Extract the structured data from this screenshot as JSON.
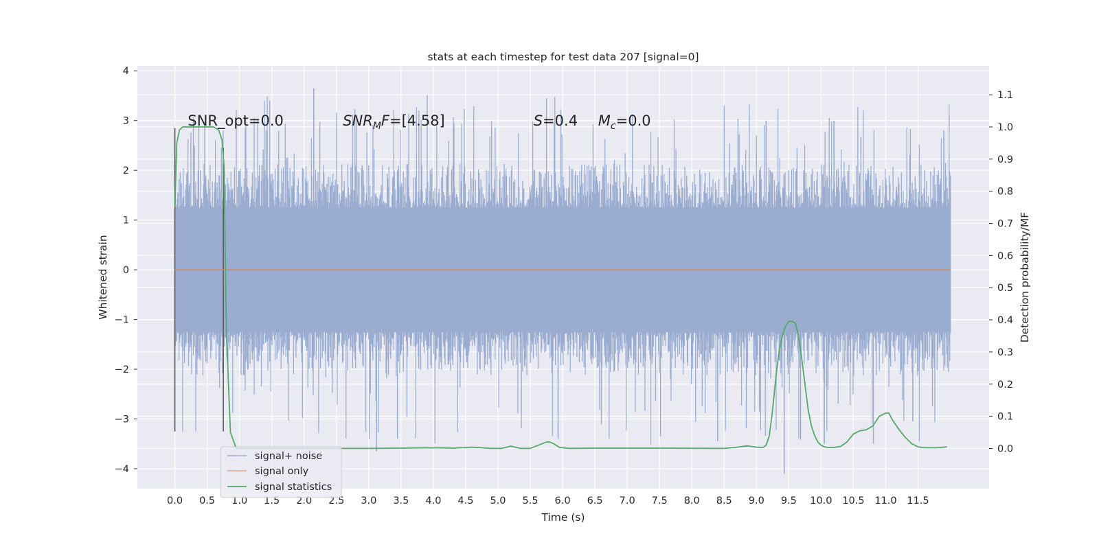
{
  "chart_data": {
    "type": "line",
    "title": "stats at each timestep for test data 207 [signal=0]",
    "xlabel": "Time (s)",
    "ylabel": "Whitened strain",
    "y2label": "Detection probability/MF",
    "xlim": [
      -0.58,
      12.6
    ],
    "ylim": [
      -4.4,
      4.1
    ],
    "y2lim": [
      -0.125,
      1.19
    ],
    "x_ticks": [
      0.0,
      0.5,
      1.0,
      1.5,
      2.0,
      2.5,
      3.0,
      3.5,
      4.0,
      4.5,
      5.0,
      5.5,
      6.0,
      6.5,
      7.0,
      7.5,
      8.0,
      8.5,
      9.0,
      9.5,
      10.0,
      10.5,
      11.0,
      11.5
    ],
    "x_tick_labels": [
      "0.0",
      "0.5",
      "1.0",
      "1.5",
      "2.0",
      "2.5",
      "3.0",
      "3.5",
      "4.0",
      "4.5",
      "5.0",
      "5.5",
      "6.0",
      "6.5",
      "7.0",
      "7.5",
      "8.0",
      "8.5",
      "9.0",
      "9.5",
      "10.0",
      "10.5",
      "11.0",
      "11.5"
    ],
    "y_ticks": [
      -4,
      -3,
      -2,
      -1,
      0,
      1,
      2,
      3,
      4
    ],
    "y_tick_labels": [
      "−4",
      "−3",
      "−2",
      "−1",
      "0",
      "1",
      "2",
      "3",
      "4"
    ],
    "y2_ticks": [
      0.0,
      0.1,
      0.2,
      0.3,
      0.4,
      0.5,
      0.6,
      0.7,
      0.8,
      0.9,
      1.0,
      1.1
    ],
    "y2_tick_labels": [
      "0.0",
      "0.1",
      "0.2",
      "0.3",
      "0.4",
      "0.5",
      "0.6",
      "0.7",
      "0.8",
      "0.9",
      "1.0",
      "1.1"
    ],
    "grid": true,
    "legend_position": "lower-left",
    "colors": {
      "background": "#eaeaf2",
      "grid": "#ffffff",
      "noise": "#9aadd1",
      "signal_only": "#dd8452",
      "statistics": "#55a868",
      "vline": "#555555"
    },
    "series": [
      {
        "name": "signal+ noise",
        "kind": "noise-band",
        "x_range": [
          0.0,
          12.0
        ],
        "envelope_typical": [
          -1.6,
          1.6
        ],
        "extremes": [
          {
            "x": 2.15,
            "y": 3.65
          },
          {
            "x": 3.12,
            "y": -3.65
          },
          {
            "x": 9.43,
            "y": -4.1
          },
          {
            "x": 10.05,
            "y": -3.5
          },
          {
            "x": 8.4,
            "y": -3.45
          },
          {
            "x": 5.93,
            "y": -3.4
          },
          {
            "x": 11.42,
            "y": -3.05
          },
          {
            "x": 9.15,
            "y": 3.0
          },
          {
            "x": 10.2,
            "y": 3.0
          },
          {
            "x": 11.9,
            "y": 2.8
          }
        ]
      },
      {
        "name": "signal only",
        "kind": "line",
        "x": [
          0.0,
          12.0
        ],
        "y": [
          0.0,
          0.0
        ]
      },
      {
        "name": "signal statistics",
        "kind": "line",
        "axis": "right",
        "x": [
          0.0,
          0.03,
          0.07,
          0.12,
          0.2,
          0.3,
          0.45,
          0.6,
          0.68,
          0.73,
          0.76,
          0.8,
          0.86,
          0.95,
          1.05,
          2.0,
          3.0,
          3.5,
          4.0,
          4.3,
          4.6,
          4.9,
          5.05,
          5.2,
          5.35,
          5.5,
          5.65,
          5.75,
          5.8,
          5.86,
          5.95,
          6.1,
          6.5,
          7.5,
          8.5,
          8.7,
          8.85,
          9.0,
          9.1,
          9.15,
          9.2,
          9.25,
          9.3,
          9.35,
          9.4,
          9.45,
          9.5,
          9.55,
          9.6,
          9.65,
          9.7,
          9.75,
          9.8,
          9.85,
          9.9,
          9.95,
          10.0,
          10.05,
          10.1,
          10.2,
          10.3,
          10.4,
          10.5,
          10.6,
          10.7,
          10.8,
          10.9,
          11.0,
          11.05,
          11.1,
          11.2,
          11.3,
          11.4,
          11.5,
          11.6,
          11.7,
          11.8,
          11.95
        ],
        "y": [
          0.75,
          0.95,
          0.99,
          1.0,
          1.0,
          1.0,
          1.0,
          1.0,
          0.99,
          0.96,
          0.88,
          0.35,
          0.05,
          0.0,
          0.0,
          0.0,
          0.0,
          0.001,
          0.002,
          0.001,
          0.004,
          0.0,
          0.0,
          0.007,
          0.0,
          0.0,
          0.012,
          0.02,
          0.02,
          0.015,
          0.003,
          0.0,
          0.001,
          0.001,
          0.0,
          0.004,
          0.008,
          0.004,
          0.003,
          0.01,
          0.04,
          0.12,
          0.22,
          0.3,
          0.35,
          0.38,
          0.395,
          0.395,
          0.39,
          0.35,
          0.28,
          0.2,
          0.12,
          0.07,
          0.04,
          0.02,
          0.01,
          0.005,
          0.003,
          0.003,
          0.006,
          0.02,
          0.045,
          0.055,
          0.058,
          0.07,
          0.1,
          0.11,
          0.11,
          0.09,
          0.06,
          0.035,
          0.015,
          0.005,
          0.002,
          0.002,
          0.002,
          0.005
        ]
      }
    ],
    "vertical_lines": [
      {
        "x": 0.0,
        "y_from": -3.25,
        "y_to": 2.85
      },
      {
        "x": 0.75,
        "y_from": -3.25,
        "y_to": 2.45
      }
    ],
    "annotations": [
      {
        "id": "snr_opt",
        "text": "SNR_opt=0.0",
        "x": 0.2,
        "y": 2.9
      },
      {
        "id": "snr_mf",
        "text_parts": [
          "SNR",
          "M",
          "F=[4.58]"
        ],
        "x": 2.6,
        "y": 2.9
      },
      {
        "id": "s_val",
        "text_parts": [
          "S",
          "=0.4"
        ],
        "x": 5.55,
        "y": 2.9
      },
      {
        "id": "mc_val",
        "text_parts": [
          "M",
          "c",
          "=0.0"
        ],
        "x": 6.55,
        "y": 2.9
      }
    ]
  }
}
